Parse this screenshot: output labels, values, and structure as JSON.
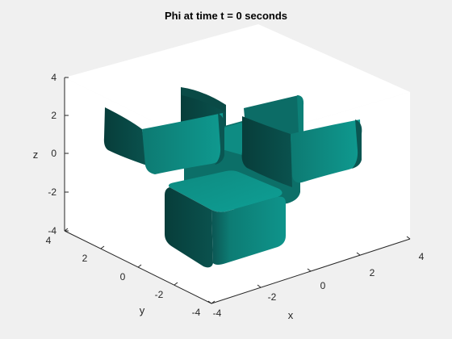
{
  "chart_data": {
    "type": "isosurface-3d",
    "title": "Phi at time t = 0 seconds",
    "xlabel": "x",
    "ylabel": "y",
    "zlabel": "z",
    "xlim": [
      -4,
      4
    ],
    "ylim": [
      -4,
      4
    ],
    "zlim": [
      -4,
      4
    ],
    "xticks": [
      "-4",
      "-2",
      "0",
      "2",
      "4"
    ],
    "yticks": [
      "-4",
      "-2",
      "0",
      "2",
      "4"
    ],
    "zticks": [
      "-4",
      "-2",
      "0",
      "2",
      "4"
    ],
    "surface_color": "#0e8a80",
    "grid": false,
    "background": "#f0f0f0",
    "axes_color": "#ffffff"
  }
}
